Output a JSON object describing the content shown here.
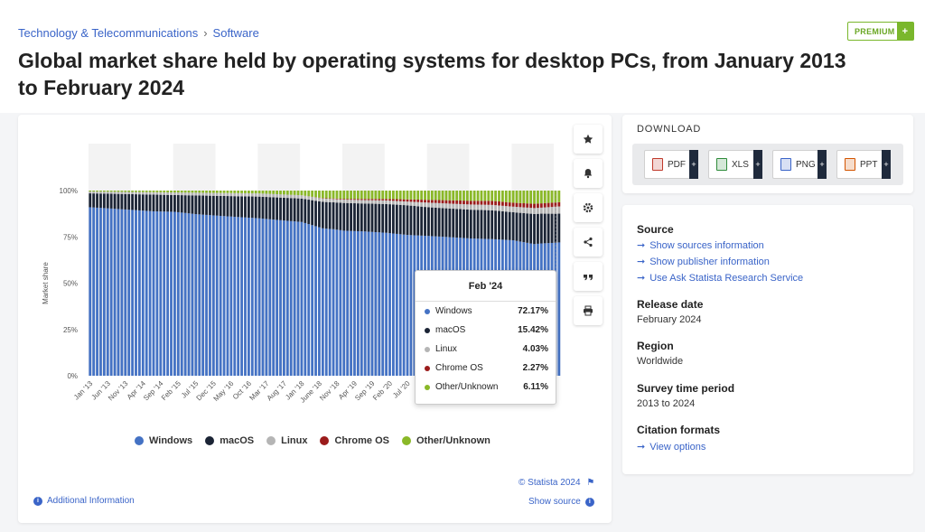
{
  "breadcrumb": {
    "category": "Technology & Telecommunications",
    "sub": "Software",
    "separator": "›"
  },
  "title": "Global market share held by operating systems for desktop PCs, from January 2013 to February 2024",
  "premium_label": "PREMIUM",
  "premium_plus": "+",
  "chart_tools": [
    "star-icon",
    "bell-icon",
    "gear-icon",
    "share-icon",
    "quote-icon",
    "print-icon"
  ],
  "legend": [
    {
      "label": "Windows",
      "color": "#4472c4"
    },
    {
      "label": "macOS",
      "color": "#1b2435"
    },
    {
      "label": "Linux",
      "color": "#b5b5b5"
    },
    {
      "label": "Chrome OS",
      "color": "#9b1c1c"
    },
    {
      "label": "Other/Unknown",
      "color": "#8ab828"
    }
  ],
  "tooltip": {
    "title": "Feb '24",
    "rows": [
      {
        "label": "Windows",
        "value": "72.17%",
        "color": "#4472c4"
      },
      {
        "label": "macOS",
        "value": "15.42%",
        "color": "#1b2435"
      },
      {
        "label": "Linux",
        "value": "4.03%",
        "color": "#b5b5b5"
      },
      {
        "label": "Chrome OS",
        "value": "2.27%",
        "color": "#9b1c1c"
      },
      {
        "label": "Other/Unknown",
        "value": "6.11%",
        "color": "#8ab828"
      }
    ]
  },
  "copyright": "© Statista 2024",
  "additional_info": "Additional Information",
  "show_source": "Show source",
  "download": {
    "title": "DOWNLOAD",
    "buttons": [
      {
        "label": "PDF",
        "color": "#c0392b"
      },
      {
        "label": "XLS",
        "color": "#2e8b3a"
      },
      {
        "label": "PNG",
        "color": "#3a64c8"
      },
      {
        "label": "PPT",
        "color": "#d35400"
      }
    ],
    "plus": "+"
  },
  "info": {
    "source_label": "Source",
    "source_links": [
      "Show sources information",
      "Show publisher information",
      "Use Ask Statista Research Service"
    ],
    "release_label": "Release date",
    "release_value": "February 2024",
    "region_label": "Region",
    "region_value": "Worldwide",
    "period_label": "Survey time period",
    "period_value": "2013 to 2024",
    "citation_label": "Citation formats",
    "citation_link": "View options",
    "arrow": "➞"
  },
  "chart_data": {
    "type": "bar",
    "stacked": true,
    "ylabel": "Market share",
    "yticks": [
      "0%",
      "25%",
      "50%",
      "75%",
      "100%"
    ],
    "ylim": [
      0,
      100
    ],
    "grid": false,
    "legend_position": "bottom",
    "x_tick_labels": [
      "Jan '13",
      "Jun '13",
      "Nov '13",
      "Apr '14",
      "Sep '14",
      "Feb '15",
      "Jul '15",
      "Dec '15",
      "May '16",
      "Oct '16",
      "Mar '17",
      "Aug '17",
      "Jan '18",
      "June '18",
      "Nov '18",
      "Apr '19",
      "Sep '19",
      "Feb '20",
      "Jul '20",
      "Dec"
    ],
    "x_start": "2013-01",
    "x_end": "2024-02",
    "series": [
      {
        "name": "Windows",
        "color": "#4472c4",
        "anchors": [
          [
            0,
            91
          ],
          [
            6,
            90.5
          ],
          [
            12,
            89.5
          ],
          [
            18,
            88.5
          ],
          [
            24,
            88
          ],
          [
            30,
            86.5
          ],
          [
            36,
            85
          ],
          [
            42,
            84
          ],
          [
            48,
            83.5
          ],
          [
            54,
            82.5
          ],
          [
            60,
            82
          ],
          [
            66,
            78
          ],
          [
            69,
            79
          ],
          [
            72,
            78.5
          ],
          [
            78,
            77.5
          ],
          [
            84,
            77
          ],
          [
            90,
            76
          ],
          [
            96,
            75.5
          ],
          [
            102,
            75
          ],
          [
            108,
            74
          ],
          [
            114,
            73.5
          ],
          [
            120,
            72.5
          ],
          [
            126,
            70
          ],
          [
            132,
            71
          ],
          [
            134,
            72.17
          ]
        ]
      },
      {
        "name": "macOS",
        "color": "#1b2435",
        "anchors": [
          [
            0,
            7.5
          ],
          [
            6,
            8
          ],
          [
            12,
            8.5
          ],
          [
            18,
            9
          ],
          [
            24,
            9
          ],
          [
            30,
            10
          ],
          [
            36,
            10.5
          ],
          [
            42,
            11
          ],
          [
            48,
            11.5
          ],
          [
            54,
            12
          ],
          [
            60,
            12.5
          ],
          [
            66,
            14
          ],
          [
            72,
            15
          ],
          [
            78,
            15
          ],
          [
            84,
            15.5
          ],
          [
            90,
            16
          ],
          [
            96,
            15.5
          ],
          [
            102,
            15.5
          ],
          [
            108,
            15.5
          ],
          [
            114,
            15.5
          ],
          [
            120,
            15
          ],
          [
            126,
            16
          ],
          [
            132,
            15.5
          ],
          [
            134,
            15.42
          ]
        ]
      },
      {
        "name": "Linux",
        "color": "#b5b5b5",
        "anchors": [
          [
            0,
            1.0
          ],
          [
            24,
            1.4
          ],
          [
            48,
            1.7
          ],
          [
            72,
            1.8
          ],
          [
            90,
            2.0
          ],
          [
            96,
            2.5
          ],
          [
            108,
            2.8
          ],
          [
            120,
            3.0
          ],
          [
            128,
            3.2
          ],
          [
            134,
            4.03
          ]
        ]
      },
      {
        "name": "Chrome OS",
        "color": "#9b1c1c",
        "anchors": [
          [
            0,
            0
          ],
          [
            60,
            0
          ],
          [
            72,
            0.4
          ],
          [
            84,
            0.8
          ],
          [
            90,
            1.2
          ],
          [
            96,
            1.5
          ],
          [
            102,
            1.8
          ],
          [
            108,
            2.0
          ],
          [
            114,
            2.2
          ],
          [
            120,
            2.1
          ],
          [
            126,
            2.3
          ],
          [
            134,
            2.27
          ]
        ]
      },
      {
        "name": "Other/Unknown",
        "color": "#8ab828",
        "anchors": [
          [
            0,
            0.5
          ],
          [
            24,
            1.0
          ],
          [
            48,
            1.5
          ],
          [
            60,
            2.5
          ],
          [
            66,
            4
          ],
          [
            72,
            4.5
          ],
          [
            84,
            4.5
          ],
          [
            96,
            5
          ],
          [
            108,
            5.5
          ],
          [
            114,
            5.5
          ],
          [
            120,
            6.5
          ],
          [
            126,
            7
          ],
          [
            134,
            6.11
          ]
        ]
      }
    ]
  }
}
